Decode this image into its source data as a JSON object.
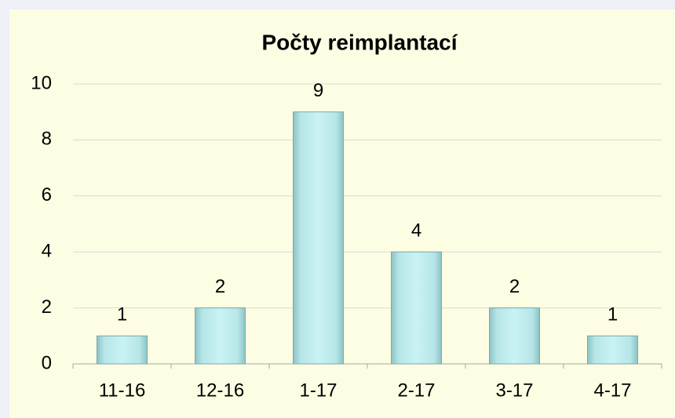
{
  "chart_data": {
    "type": "bar",
    "title": "Počty reimplantací",
    "categories": [
      "11-16",
      "12-16",
      "1-17",
      "2-17",
      "3-17",
      "4-17"
    ],
    "values": [
      1,
      2,
      9,
      4,
      2,
      1
    ],
    "color": "#a9dfe2",
    "ylim": [
      0,
      10
    ],
    "yticks": [
      0,
      2,
      4,
      6,
      8,
      10
    ],
    "grid": true
  }
}
